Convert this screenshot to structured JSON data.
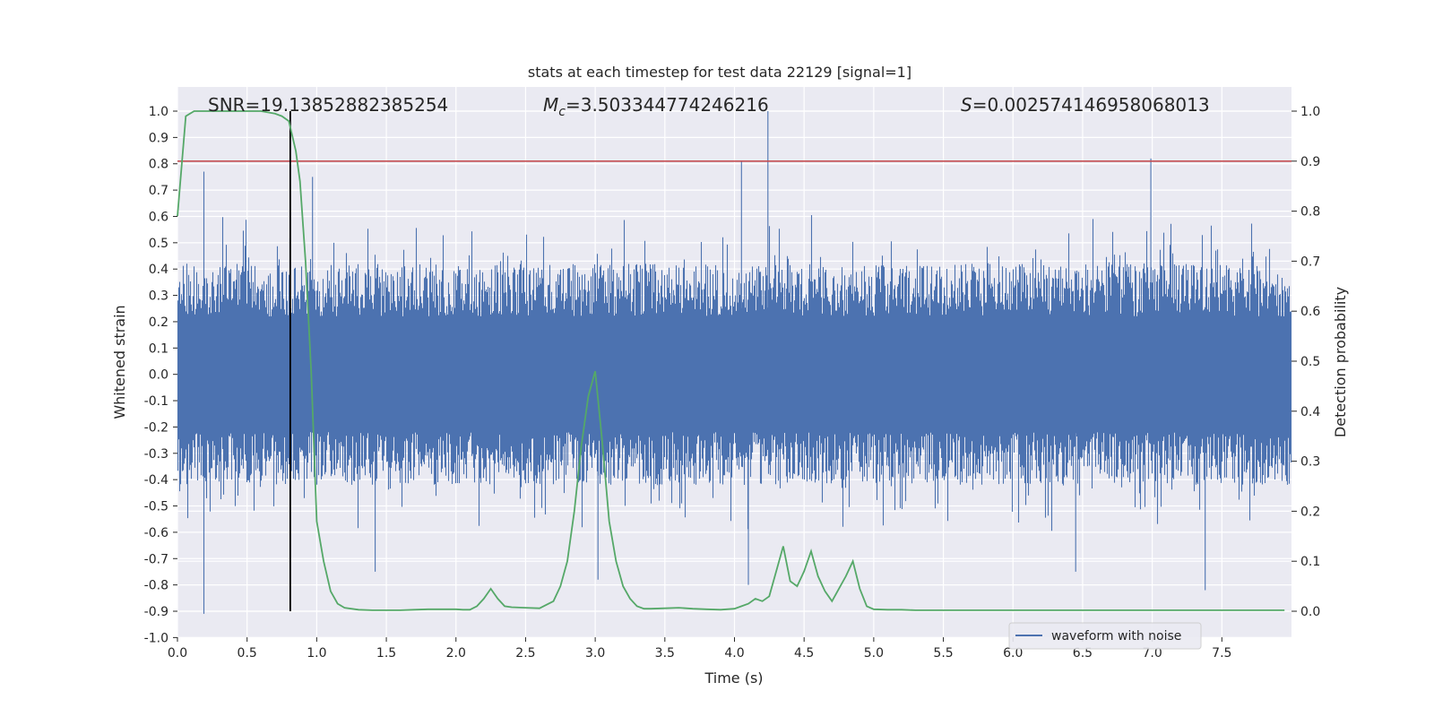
{
  "chart_data": {
    "type": "line",
    "title": "stats at each timestep for test data 22129 [signal=1]",
    "xlabel": "Time (s)",
    "ylabel_left": "Whitened strain",
    "ylabel_right": "Detection probability",
    "xlim": [
      0.0,
      8.0
    ],
    "ylim_left": [
      -1.0,
      1.0
    ],
    "ylim_right": [
      0.0,
      1.0
    ],
    "x_ticks": [
      "0.0",
      "0.5",
      "1.0",
      "1.5",
      "2.0",
      "2.5",
      "3.0",
      "3.5",
      "4.0",
      "4.5",
      "5.0",
      "5.5",
      "6.0",
      "6.5",
      "7.0",
      "7.5"
    ],
    "y_ticks_left": [
      "-1.0",
      "-0.9",
      "-0.8",
      "-0.7",
      "-0.6",
      "-0.5",
      "-0.4",
      "-0.3",
      "-0.2",
      "-0.1",
      "0.0",
      "0.1",
      "0.2",
      "0.3",
      "0.4",
      "0.5",
      "0.6",
      "0.7",
      "0.8",
      "0.9",
      "1.0"
    ],
    "y_ticks_right": [
      "0.0",
      "0.1",
      "0.2",
      "0.3",
      "0.4",
      "0.5",
      "0.6",
      "0.7",
      "0.8",
      "0.9",
      "1.0"
    ],
    "annotations": {
      "snr": "SNR=19.13852882385254",
      "mc_symbol": "M",
      "mc_sub": "c",
      "mc_value": "=3.503344774246216",
      "s_symbol": "S",
      "s_value": "=0.002574146958068013"
    },
    "threshold": {
      "value": 0.9,
      "axis": "right",
      "color": "#c44e52"
    },
    "marker_time": 0.81,
    "legend": {
      "location": "lower-right",
      "entries": [
        "waveform with noise"
      ]
    },
    "grid": true,
    "colors": {
      "background": "#eaeaf2",
      "waveform": "#4c72b0",
      "probability": "#55a868",
      "marker": "#000000",
      "threshold": "#c44e52"
    },
    "waveform_stats": {
      "series_name": "waveform with noise",
      "duration_s": 8.0,
      "typical_envelope": [
        -0.42,
        0.42
      ],
      "peaks": [
        {
          "x": 0.19,
          "y": 0.77
        },
        {
          "x": 0.19,
          "y": -0.91
        },
        {
          "x": 0.97,
          "y": 0.75
        },
        {
          "x": 4.05,
          "y": 0.81
        },
        {
          "x": 4.24,
          "y": 1.0
        },
        {
          "x": 4.1,
          "y": -0.8
        },
        {
          "x": 6.99,
          "y": 0.82
        },
        {
          "x": 7.38,
          "y": -0.82
        },
        {
          "x": 3.02,
          "y": -0.78
        },
        {
          "x": 6.45,
          "y": -0.75
        },
        {
          "x": 1.42,
          "y": -0.75
        }
      ]
    },
    "series": [
      {
        "name": "",
        "axis": "right",
        "x": [
          0.0,
          0.06,
          0.12,
          0.2,
          0.3,
          0.4,
          0.5,
          0.6,
          0.7,
          0.75,
          0.8,
          0.85,
          0.88,
          0.92,
          0.96,
          1.0,
          1.05,
          1.1,
          1.15,
          1.2,
          1.3,
          1.4,
          1.5,
          1.6,
          1.7,
          1.8,
          1.9,
          2.0,
          2.05,
          2.1,
          2.15,
          2.2,
          2.25,
          2.3,
          2.35,
          2.4,
          2.5,
          2.6,
          2.7,
          2.75,
          2.8,
          2.85,
          2.9,
          2.95,
          3.0,
          3.05,
          3.1,
          3.15,
          3.2,
          3.25,
          3.3,
          3.35,
          3.4,
          3.5,
          3.6,
          3.7,
          3.8,
          3.9,
          4.0,
          4.05,
          4.1,
          4.15,
          4.2,
          4.25,
          4.3,
          4.35,
          4.4,
          4.45,
          4.5,
          4.55,
          4.6,
          4.65,
          4.7,
          4.75,
          4.8,
          4.85,
          4.9,
          4.95,
          5.0,
          5.1,
          5.2,
          5.3,
          5.4,
          5.5,
          5.6,
          5.8,
          6.0,
          6.2,
          6.4,
          6.6,
          6.8,
          7.0,
          7.2,
          7.4,
          7.6,
          7.8,
          7.95
        ],
        "values": [
          0.79,
          0.99,
          1.0,
          1.0,
          1.0,
          1.0,
          1.0,
          1.0,
          0.995,
          0.99,
          0.98,
          0.92,
          0.86,
          0.7,
          0.48,
          0.18,
          0.1,
          0.04,
          0.015,
          0.007,
          0.003,
          0.002,
          0.002,
          0.002,
          0.003,
          0.004,
          0.004,
          0.004,
          0.003,
          0.003,
          0.01,
          0.025,
          0.045,
          0.025,
          0.01,
          0.008,
          0.007,
          0.006,
          0.02,
          0.05,
          0.1,
          0.2,
          0.33,
          0.43,
          0.48,
          0.34,
          0.18,
          0.1,
          0.05,
          0.025,
          0.01,
          0.005,
          0.005,
          0.006,
          0.007,
          0.005,
          0.004,
          0.003,
          0.005,
          0.01,
          0.015,
          0.025,
          0.02,
          0.03,
          0.08,
          0.13,
          0.06,
          0.05,
          0.08,
          0.12,
          0.07,
          0.04,
          0.02,
          0.045,
          0.07,
          0.1,
          0.045,
          0.01,
          0.004,
          0.003,
          0.003,
          0.002,
          0.002,
          0.002,
          0.002,
          0.002,
          0.002,
          0.002,
          0.002,
          0.002,
          0.002,
          0.002,
          0.002,
          0.002,
          0.002,
          0.002,
          0.002
        ]
      }
    ]
  }
}
